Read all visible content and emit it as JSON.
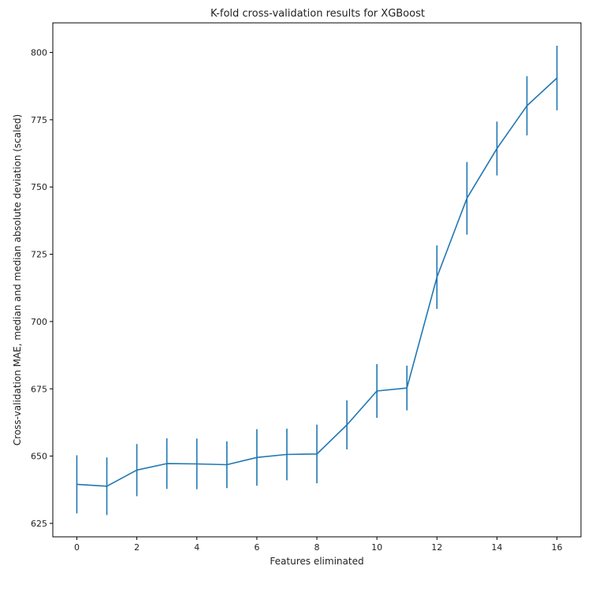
{
  "chart_data": {
    "type": "line",
    "title": "K-fold cross-validation results for XGBoost",
    "xlabel": "Features eliminated",
    "ylabel": "Cross-validation MAE, median and median absolute deviation (scaled)",
    "xlim": [
      -0.8,
      16.8
    ],
    "ylim": [
      620,
      811
    ],
    "xticks": [
      0,
      2,
      4,
      6,
      8,
      10,
      12,
      14,
      16
    ],
    "yticks": [
      625,
      650,
      675,
      700,
      725,
      750,
      775,
      800
    ],
    "grid": false,
    "color": "#1f77b4",
    "series": [
      {
        "x": [
          0,
          1,
          2,
          3,
          4,
          5,
          6,
          7,
          8,
          9,
          10,
          11,
          12,
          13,
          14,
          15,
          16
        ],
        "y": [
          639.5,
          638.8,
          644.8,
          647.2,
          647.1,
          646.8,
          649.5,
          650.6,
          650.8,
          661.6,
          674.2,
          675.3,
          716.5,
          745.8,
          764.3,
          780.2,
          790.5
        ],
        "error": [
          10.8,
          10.7,
          9.7,
          9.4,
          9.4,
          8.7,
          10.5,
          9.6,
          10.9,
          9.1,
          10.0,
          8.3,
          11.8,
          13.5,
          10.0,
          11.0,
          12.0
        ]
      }
    ]
  }
}
